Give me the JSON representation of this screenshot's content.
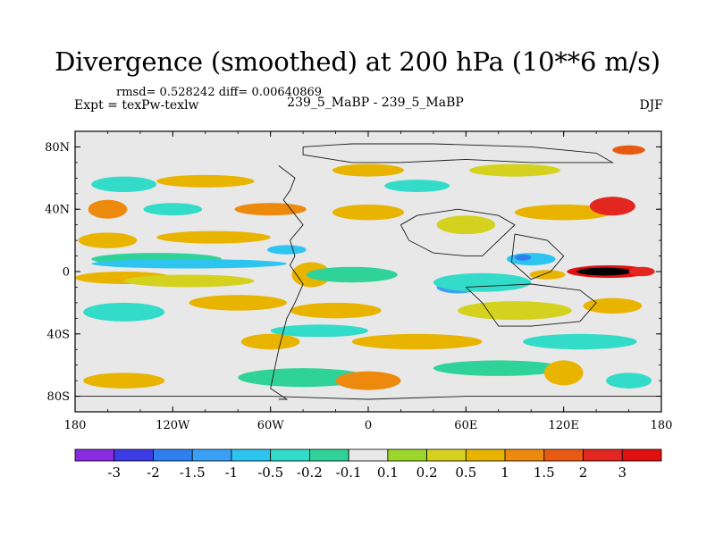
{
  "title": "Divergence (smoothed) at 200 hPa (10**6 m/s)",
  "stats_line": "rmsd= 0.528242  diff= 0.00640869",
  "left_label": "Expt = texPw-texlw",
  "center_label": "239_5_MaBP - 239_5_MaBP",
  "right_label": "DJF",
  "chart_data": {
    "type": "contour-map",
    "variable": "Divergence (smoothed)",
    "level": "200 hPa",
    "units": "10**6 m/s",
    "season": "DJF",
    "rmsd": 0.528242,
    "diff": 0.00640869,
    "xlim": [
      -180,
      180
    ],
    "ylim": [
      -90,
      90
    ],
    "x_ticks": [
      {
        "value": -180,
        "label": "180"
      },
      {
        "value": -120,
        "label": "120W"
      },
      {
        "value": -60,
        "label": "60W"
      },
      {
        "value": 0,
        "label": "0"
      },
      {
        "value": 60,
        "label": "60E"
      },
      {
        "value": 120,
        "label": "120E"
      },
      {
        "value": 180,
        "label": "180"
      }
    ],
    "y_ticks": [
      {
        "value": 80,
        "label": "80N"
      },
      {
        "value": 40,
        "label": "40N"
      },
      {
        "value": 0,
        "label": "0"
      },
      {
        "value": -40,
        "label": "40S"
      },
      {
        "value": -80,
        "label": "80S"
      }
    ],
    "colorbar": {
      "levels": [
        "-3",
        "-2",
        "-1.5",
        "-1",
        "-0.5",
        "-0.2",
        "-0.1",
        "0.1",
        "0.2",
        "0.5",
        "1",
        "1.5",
        "2",
        "3"
      ],
      "colors": [
        "#8a2be2",
        "#3c3ce6",
        "#2f7ff0",
        "#3aa0f5",
        "#2ec4f0",
        "#33dcc8",
        "#2fd39a",
        "#e8e8e8",
        "#9cd62b",
        "#d4d21e",
        "#e8b400",
        "#ed8a0d",
        "#e85a12",
        "#e3261f",
        "#e01010"
      ]
    },
    "regions": [
      {
        "lon": 148,
        "lat": 0,
        "rx": 26,
        "ry": 4,
        "level": 14
      },
      {
        "lon": 145,
        "lat": 0,
        "rx": 17,
        "ry": 2.5,
        "level": 15
      },
      {
        "lon": 168,
        "lat": 0,
        "rx": 8,
        "ry": 3,
        "level": 13
      },
      {
        "lon": 110,
        "lat": -2,
        "rx": 11,
        "ry": 3,
        "level": 10
      },
      {
        "lon": 100,
        "lat": 8,
        "rx": 15,
        "ry": 4,
        "level": 4
      },
      {
        "lon": 95,
        "lat": 9,
        "rx": 5,
        "ry": 2,
        "level": 2
      },
      {
        "lon": 55,
        "lat": -10,
        "rx": 13,
        "ry": 4,
        "level": 3
      },
      {
        "lon": 70,
        "lat": -7,
        "rx": 30,
        "ry": 6,
        "level": 5
      },
      {
        "lon": -35,
        "lat": -2,
        "rx": 6,
        "ry": 5,
        "level": 12
      },
      {
        "lon": -35,
        "lat": -2,
        "rx": 12,
        "ry": 8,
        "level": 10
      },
      {
        "lon": -10,
        "lat": -2,
        "rx": 28,
        "ry": 5,
        "level": 6
      },
      {
        "lon": -130,
        "lat": 8,
        "rx": 40,
        "ry": 4,
        "level": 6
      },
      {
        "lon": -150,
        "lat": -4,
        "rx": 30,
        "ry": 4,
        "level": 10
      },
      {
        "lon": -110,
        "lat": -6,
        "rx": 40,
        "ry": 4,
        "level": 9
      },
      {
        "lon": -110,
        "lat": 5,
        "rx": 60,
        "ry": 3,
        "level": 4
      },
      {
        "lon": -50,
        "lat": 14,
        "rx": 12,
        "ry": 3,
        "level": 4
      },
      {
        "lon": -160,
        "lat": 20,
        "rx": 18,
        "ry": 5,
        "level": 10
      },
      {
        "lon": -95,
        "lat": 22,
        "rx": 35,
        "ry": 4,
        "level": 10
      },
      {
        "lon": -120,
        "lat": 40,
        "rx": 18,
        "ry": 4,
        "level": 5
      },
      {
        "lon": -60,
        "lat": 40,
        "rx": 22,
        "ry": 4,
        "level": 11
      },
      {
        "lon": -160,
        "lat": 40,
        "rx": 12,
        "ry": 6,
        "level": 11
      },
      {
        "lon": 0,
        "lat": 38,
        "rx": 22,
        "ry": 5,
        "level": 10
      },
      {
        "lon": 60,
        "lat": 30,
        "rx": 18,
        "ry": 6,
        "level": 9
      },
      {
        "lon": 120,
        "lat": 38,
        "rx": 30,
        "ry": 5,
        "level": 10
      },
      {
        "lon": 150,
        "lat": 42,
        "rx": 14,
        "ry": 6,
        "level": 13
      },
      {
        "lon": -100,
        "lat": 58,
        "rx": 30,
        "ry": 4,
        "level": 10
      },
      {
        "lon": 0,
        "lat": 65,
        "rx": 22,
        "ry": 4,
        "level": 10
      },
      {
        "lon": 90,
        "lat": 65,
        "rx": 28,
        "ry": 4,
        "level": 9
      },
      {
        "lon": 160,
        "lat": 78,
        "rx": 10,
        "ry": 3,
        "level": 12
      },
      {
        "lon": -150,
        "lat": 56,
        "rx": 20,
        "ry": 5,
        "level": 5
      },
      {
        "lon": 30,
        "lat": 55,
        "rx": 20,
        "ry": 4,
        "level": 5
      },
      {
        "lon": -80,
        "lat": -20,
        "rx": 30,
        "ry": 5,
        "level": 10
      },
      {
        "lon": -150,
        "lat": -26,
        "rx": 25,
        "ry": 6,
        "level": 5
      },
      {
        "lon": -20,
        "lat": -25,
        "rx": 28,
        "ry": 5,
        "level": 10
      },
      {
        "lon": 90,
        "lat": -25,
        "rx": 35,
        "ry": 6,
        "level": 9
      },
      {
        "lon": 150,
        "lat": -22,
        "rx": 18,
        "ry": 5,
        "level": 10
      },
      {
        "lon": -30,
        "lat": -38,
        "rx": 30,
        "ry": 4,
        "level": 5
      },
      {
        "lon": 30,
        "lat": -45,
        "rx": 40,
        "ry": 5,
        "level": 10
      },
      {
        "lon": -60,
        "lat": -45,
        "rx": 18,
        "ry": 5,
        "level": 10
      },
      {
        "lon": 130,
        "lat": -45,
        "rx": 35,
        "ry": 5,
        "level": 5
      },
      {
        "lon": -40,
        "lat": -68,
        "rx": 40,
        "ry": 6,
        "level": 6
      },
      {
        "lon": 80,
        "lat": -62,
        "rx": 40,
        "ry": 5,
        "level": 6
      },
      {
        "lon": 0,
        "lat": -70,
        "rx": 20,
        "ry": 6,
        "level": 11
      },
      {
        "lon": 120,
        "lat": -65,
        "rx": 12,
        "ry": 8,
        "level": 10
      },
      {
        "lon": -150,
        "lat": -70,
        "rx": 25,
        "ry": 5,
        "level": 10
      },
      {
        "lon": 160,
        "lat": -70,
        "rx": 14,
        "ry": 5,
        "level": 5
      }
    ]
  }
}
